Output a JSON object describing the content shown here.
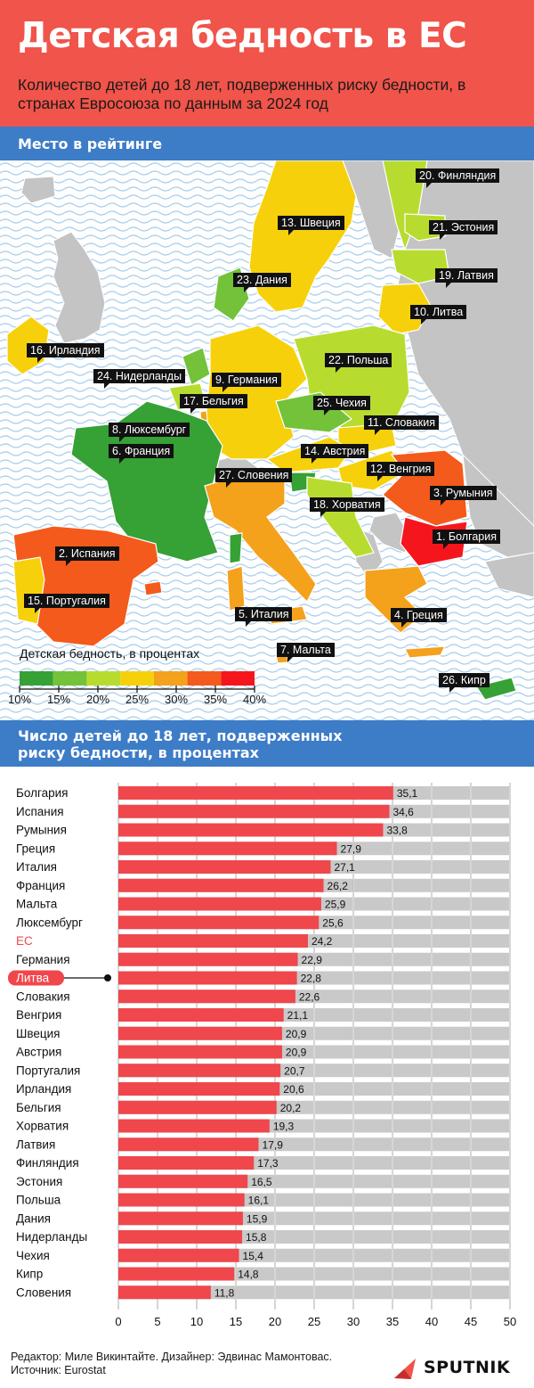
{
  "header": {
    "title": "Детская бедность в ЕС",
    "subtitle": "Количество детей до 18 лет, подверженных риску бедности, в странах Евросоюза по данным за 2024 год"
  },
  "map_section": {
    "heading": "Место в рейтинге",
    "labels": [
      "20. Финляндия",
      "13. Швеция",
      "21. Эстония",
      "19. Латвия",
      "23. Дания",
      "10. Литва",
      "16. Ирландия",
      "22. Польша",
      "24. Нидерланды",
      "9. Германия",
      "17. Бельгия",
      "25. Чехия",
      "11. Словакия",
      "8. Люксембург",
      "6. Франция",
      "14. Австрия",
      "12. Венгрия",
      "27. Словения",
      "3. Румыния",
      "18. Хорватия",
      "1. Болгария",
      "2. Испания",
      "15. Португалия",
      "5. Италия",
      "4. Греция",
      "7. Мальта",
      "26. Кипр"
    ],
    "legend": {
      "title": "Детская бедность, в процентах",
      "ticks": [
        "10%",
        "15%",
        "20%",
        "25%",
        "30%",
        "35%",
        "40%"
      ],
      "colors": [
        "#36a135",
        "#73c23a",
        "#b7dc2f",
        "#f6d10b",
        "#f4a11c",
        "#f35a1c",
        "#f5161d"
      ]
    }
  },
  "chart_section": {
    "heading": "Число детей до 18 лет, подверженных риску бедности, в процентах"
  },
  "chart_data": {
    "type": "bar",
    "orientation": "horizontal",
    "categories": [
      "Болгария",
      "Испания",
      "Румыния",
      "Греция",
      "Италия",
      "Франция",
      "Мальта",
      "Люксембург",
      "ЕС",
      "Германия",
      "Литва",
      "Словакия",
      "Венгрия",
      "Швеция",
      "Австрия",
      "Португалия",
      "Ирландия",
      "Бельгия",
      "Хорватия",
      "Латвия",
      "Финляндия",
      "Эстония",
      "Польша",
      "Дания",
      "Нидерланды",
      "Чехия",
      "Кипр",
      "Словения"
    ],
    "values": [
      35.1,
      34.6,
      33.8,
      27.9,
      27.1,
      26.2,
      25.9,
      25.6,
      24.2,
      22.9,
      22.8,
      22.6,
      21.1,
      20.9,
      20.9,
      20.7,
      20.6,
      20.2,
      19.3,
      17.9,
      17.3,
      16.5,
      16.1,
      15.9,
      15.8,
      15.4,
      14.8,
      11.8
    ],
    "value_labels": [
      "35,1",
      "34,6",
      "33,8",
      "27,9",
      "27,1",
      "26,2",
      "25,9",
      "25,6",
      "24,2",
      "22,9",
      "22,8",
      "22,6",
      "21,1",
      "20,9",
      "20,9",
      "20,7",
      "20,6",
      "20,2",
      "19,3",
      "17,9",
      "17,3",
      "16,5",
      "16,1",
      "15,9",
      "15,8",
      "15,4",
      "14,8",
      "11,8"
    ],
    "highlight": {
      "eu": "ЕС",
      "marked": "Литва"
    },
    "xlim": [
      0,
      50
    ],
    "xticks": [
      "0",
      "5",
      "10",
      "15",
      "20",
      "25",
      "30",
      "35",
      "40",
      "45",
      "50"
    ],
    "grid": true,
    "colors": {
      "bar": "#ef474c",
      "background_bar": "#c9c9c9",
      "highlight": "#ef474c",
      "grid": "#9a9a9a"
    }
  },
  "footer": {
    "credits": "Редактор: Миле Викинтайте.  Дизайнер: Эдвинас Мамонтовас.",
    "source": "Источник: Eurostat",
    "logo": "SPUTNIK"
  },
  "colors": {
    "header": "#f0544a",
    "band": "#3d7cc7",
    "sea_line": "#9ac6ea",
    "land_gray": "#c4c4c4"
  }
}
